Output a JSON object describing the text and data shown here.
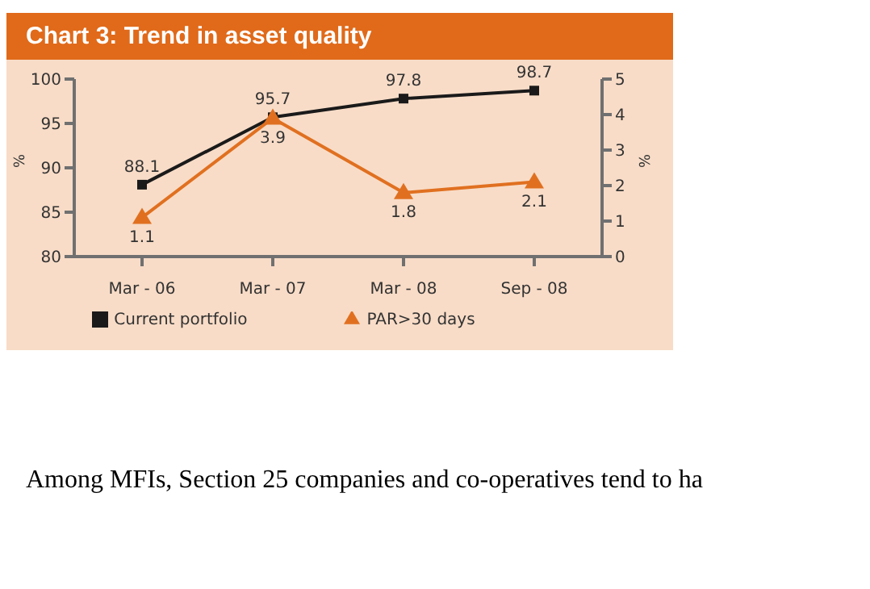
{
  "chart_data": {
    "type": "line",
    "title": "Chart 3: Trend in asset quality",
    "categories": [
      "Mar - 06",
      "Mar - 07",
      "Mar - 08",
      "Sep - 08"
    ],
    "series": [
      {
        "name": "Current portfolio",
        "color": "#1a1a1a",
        "values": [
          88.1,
          95.7,
          97.8,
          98.7
        ],
        "marker": "square"
      },
      {
        "name": "PAR>30 days",
        "color": "#e07020",
        "values": [
          1.1,
          3.9,
          1.8,
          2.1
        ],
        "marker": "triangle",
        "axis": "y2"
      }
    ],
    "ylabel": "%",
    "y2label": "%",
    "ylim": [
      80,
      100
    ],
    "yticks": [
      80,
      85,
      90,
      95,
      100
    ],
    "y2lim": [
      0,
      5
    ],
    "y2ticks": [
      0,
      1,
      2,
      3,
      4,
      5
    ],
    "data_labels": true,
    "grid": false,
    "legend": "bottom",
    "annotations": [
      "Among MFIs, Section 25 companies and co-operatives tend to ha"
    ]
  }
}
